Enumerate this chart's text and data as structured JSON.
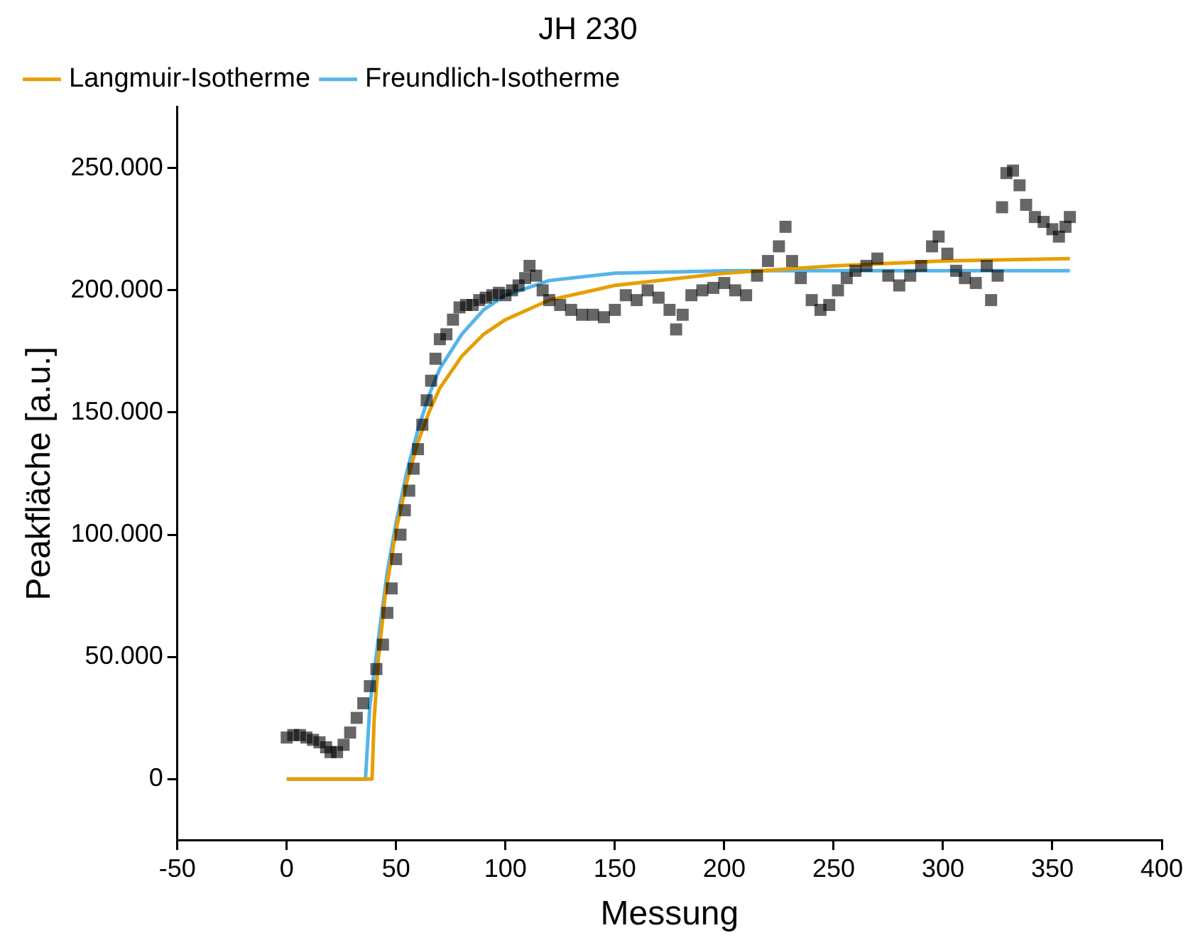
{
  "chart_data": {
    "type": "scatter",
    "title": "JH 230",
    "xlabel": "Messung",
    "ylabel": "Peakfläche [a.u.]",
    "xlim": [
      -50,
      400
    ],
    "xticks": [
      -50,
      0,
      50,
      100,
      150,
      200,
      250,
      300,
      350,
      400
    ],
    "ylim": [
      -25000,
      275000
    ],
    "yticks": [
      {
        "value": 0,
        "label": "0"
      },
      {
        "value": 50000,
        "label": "50.000"
      },
      {
        "value": 100000,
        "label": "100.000"
      },
      {
        "value": 150000,
        "label": "150.000"
      },
      {
        "value": 200000,
        "label": "200.000"
      },
      {
        "value": 250000,
        "label": "250.000"
      }
    ],
    "grid": false,
    "legend": "top left",
    "series": [
      {
        "marker": "square",
        "color": "#000000",
        "x": [
          0,
          3,
          6,
          9,
          12,
          15,
          18,
          20,
          23,
          26,
          29,
          32,
          35,
          38,
          41,
          44,
          46,
          48,
          50,
          52,
          54,
          56,
          58,
          60,
          62,
          64,
          66,
          68,
          70,
          73,
          76,
          79,
          82,
          85,
          88,
          91,
          94,
          97,
          100,
          103,
          106,
          109,
          111,
          114,
          117,
          120,
          125,
          130,
          135,
          140,
          145,
          150,
          155,
          160,
          165,
          170,
          175,
          178,
          181,
          185,
          190,
          195,
          200,
          205,
          210,
          215,
          220,
          225,
          228,
          231,
          235,
          240,
          244,
          248,
          252,
          256,
          260,
          265,
          270,
          275,
          280,
          285,
          290,
          295,
          298,
          302,
          306,
          310,
          315,
          320,
          322,
          325,
          327,
          329,
          332,
          335,
          338,
          342,
          346,
          350,
          353,
          356,
          358
        ],
        "values": [
          17000,
          18000,
          18000,
          17000,
          16000,
          15000,
          13000,
          11000,
          11000,
          14000,
          19000,
          25000,
          31000,
          38000,
          45000,
          55000,
          68000,
          78000,
          90000,
          100000,
          110000,
          118000,
          127000,
          135000,
          145000,
          155000,
          163000,
          172000,
          180000,
          182000,
          188000,
          193000,
          194000,
          194000,
          196000,
          197000,
          198000,
          199000,
          198000,
          200000,
          202000,
          205000,
          210000,
          206000,
          200000,
          196000,
          194000,
          192000,
          190000,
          190000,
          189000,
          192000,
          198000,
          196000,
          200000,
          197000,
          192000,
          184000,
          190000,
          198000,
          200000,
          201000,
          203000,
          200000,
          198000,
          206000,
          212000,
          218000,
          226000,
          212000,
          205000,
          196000,
          192000,
          194000,
          200000,
          205000,
          208000,
          210000,
          213000,
          206000,
          202000,
          206000,
          210000,
          218000,
          222000,
          215000,
          208000,
          205000,
          203000,
          210000,
          196000,
          206000,
          234000,
          248000,
          249000,
          243000,
          235000,
          230000,
          228000,
          225000,
          222000,
          226000,
          230000
        ]
      },
      {
        "type": "line",
        "marker": "none",
        "name": "Langmuir-Isotherme",
        "color": "#e69f00",
        "x": [
          0,
          39,
          40,
          42,
          45,
          50,
          55,
          60,
          65,
          70,
          80,
          90,
          100,
          120,
          150,
          200,
          250,
          300,
          358
        ],
        "values": [
          0,
          0,
          25000,
          50000,
          75000,
          102000,
          122000,
          138000,
          150000,
          160000,
          173000,
          182000,
          188000,
          196000,
          202000,
          207000,
          210000,
          212000,
          213000
        ]
      },
      {
        "type": "line",
        "marker": "none",
        "name": "Freundlich-Isotherme",
        "color": "#56b4e9",
        "x": [
          0,
          36,
          38,
          42,
          46,
          50,
          55,
          60,
          65,
          70,
          80,
          90,
          100,
          120,
          150,
          200,
          300,
          358
        ],
        "values": [
          0,
          0,
          30000,
          58000,
          85000,
          105000,
          126000,
          143000,
          157000,
          168000,
          182000,
          192000,
          198000,
          204000,
          207000,
          208000,
          208000,
          208000
        ]
      }
    ]
  }
}
